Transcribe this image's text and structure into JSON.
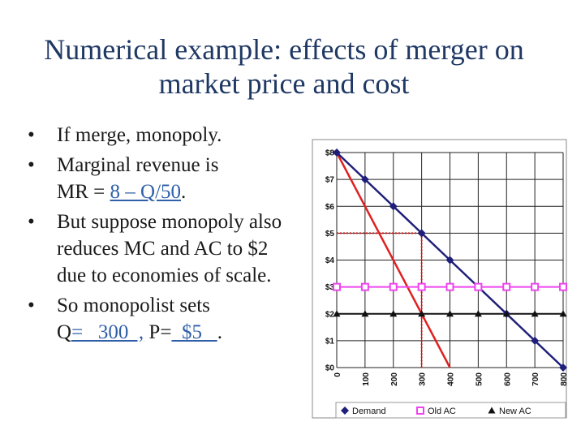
{
  "slide": {
    "title_line1": "Numerical example: effects of merger on",
    "title_line2": "market price and cost",
    "bullet_marker": "•",
    "b1": "If merge, monopoly.",
    "b2_line1": "Marginal revenue is",
    "b2_prefix": "MR = ",
    "b2_link": "8 – Q/50",
    "b2_suffix": ".",
    "b3": "But suppose monopoly also reduces MC and AC to $2 due to economies of scale.",
    "b4_line1": "So monopolist sets",
    "b4_q_prefix": "Q",
    "b4_q_value": "=   300  ,",
    "b4_p_prefix": " P=",
    "b4_p_value": "  $5   ",
    "b4_suffix": "."
  },
  "colors": {
    "title": "#1f3864",
    "demand": "#1f1f7a",
    "mr": "#e02020",
    "old_ac": "#ee44ee",
    "new_ac": "#111111",
    "dotted": "#d02020"
  },
  "chart_data": {
    "type": "line",
    "x": [
      0,
      100,
      200,
      300,
      400,
      500,
      600,
      700,
      800
    ],
    "xticks": [
      "0",
      "100",
      "200",
      "300",
      "400",
      "500",
      "600",
      "700",
      "800"
    ],
    "yticks": [
      "$0",
      "$1",
      "$2",
      "$3",
      "$4",
      "$5",
      "$6",
      "$7",
      "$8"
    ],
    "xlim": [
      0,
      800
    ],
    "ylim": [
      0,
      8
    ],
    "grid": true,
    "legend_position": "bottom",
    "series": [
      {
        "name": "Demand",
        "marker": "diamond",
        "values": [
          8,
          7,
          6,
          5,
          4,
          3,
          2,
          1,
          0
        ]
      },
      {
        "name": "Old AC",
        "marker": "square-open",
        "values": [
          3,
          3,
          3,
          3,
          3,
          3,
          3,
          3,
          3
        ]
      },
      {
        "name": "New AC",
        "marker": "triangle",
        "values": [
          2,
          2,
          2,
          2,
          2,
          2,
          2,
          2,
          2
        ]
      }
    ],
    "mr_line": {
      "x": [
        0,
        400
      ],
      "y": [
        8,
        0
      ]
    },
    "monopoly_point": {
      "x": 300,
      "y": 5
    },
    "mr_mc_intersection": {
      "x": 300,
      "y": 2
    }
  }
}
